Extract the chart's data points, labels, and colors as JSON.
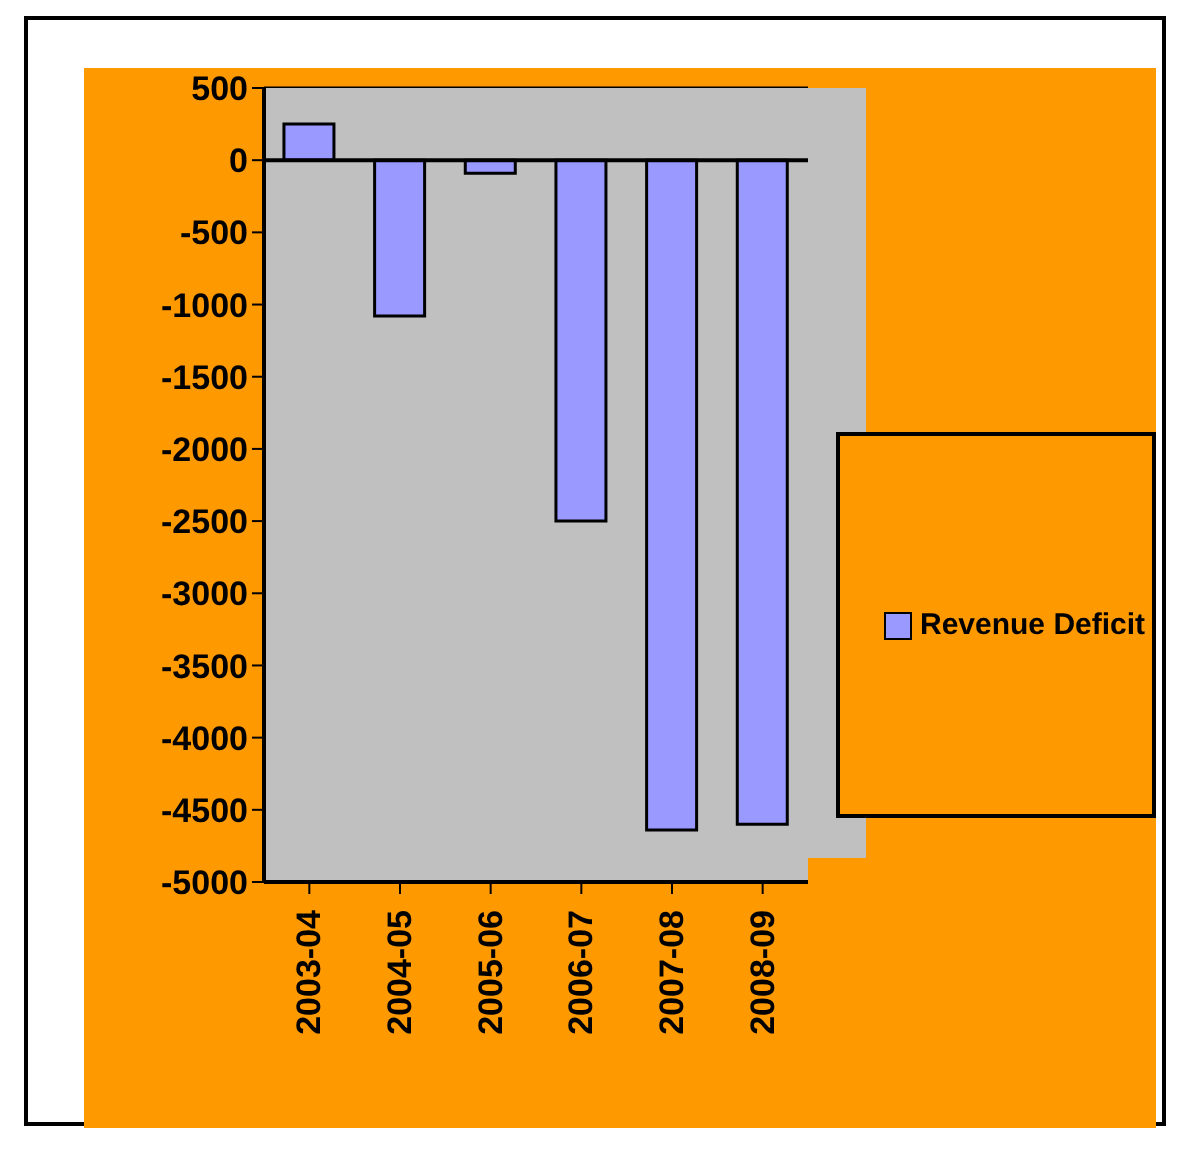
{
  "chart_data": {
    "type": "bar",
    "categories": [
      "2003-04",
      "2004-05",
      "2005-06",
      "2006-07",
      "2007-08",
      "2008-09"
    ],
    "series": [
      {
        "name": "Revenue Deficit",
        "color": "#9999ff",
        "values": [
          250,
          -1080,
          -90,
          -2500,
          -4640,
          -4600
        ]
      }
    ],
    "ylim": [
      -5000,
      500
    ],
    "yticks": [
      -5000,
      -4500,
      -4000,
      -3500,
      -3000,
      -2500,
      -2000,
      -1500,
      -1000,
      -500,
      0,
      500
    ],
    "grid": "y",
    "legend": "right"
  }
}
